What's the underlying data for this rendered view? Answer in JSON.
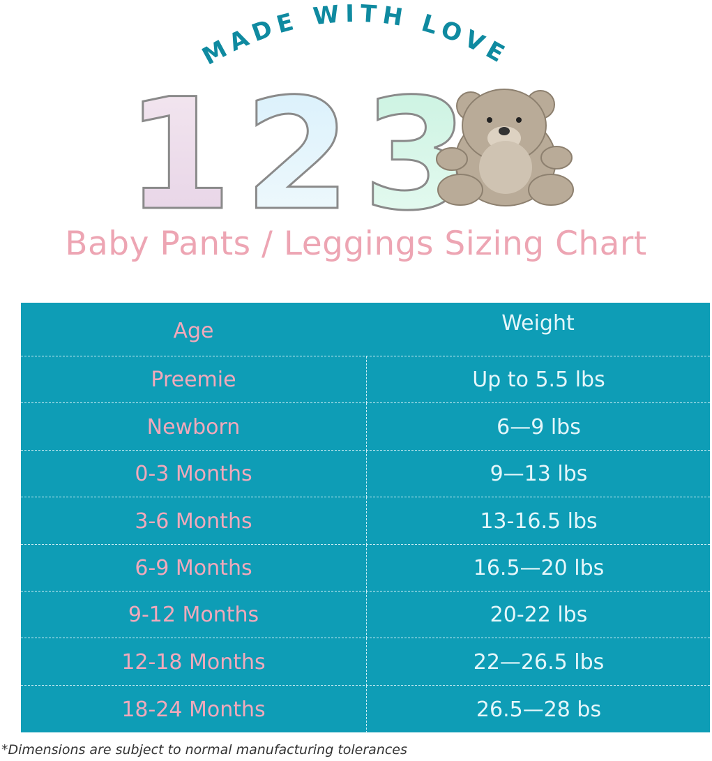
{
  "logo": {
    "tagline": "MADE WITH LOVE",
    "numerals": "123"
  },
  "title": "Baby Pants / Leggings Sizing Chart",
  "colors": {
    "table_bg": "#0e9db6",
    "age_text": "#f1a9bb",
    "weight_text": "#e4f6fa",
    "title": "#eda5b3",
    "tagline": "#0f8aa0"
  },
  "table": {
    "headers": {
      "age": "Age",
      "weight": "Weight"
    },
    "rows": [
      {
        "age": "Preemie",
        "weight": "Up to 5.5 lbs"
      },
      {
        "age": "Newborn",
        "weight": "6—9 lbs"
      },
      {
        "age": "0-3 Months",
        "weight": "9—13 lbs"
      },
      {
        "age": "3-6 Months",
        "weight": "13-16.5 lbs"
      },
      {
        "age": "6-9 Months",
        "weight": "16.5—20 lbs"
      },
      {
        "age": "9-12 Months",
        "weight": "20-22 lbs"
      },
      {
        "age": "12-18 Months",
        "weight": "22—26.5 lbs"
      },
      {
        "age": "18-24 Months",
        "weight": "26.5—28 bs"
      }
    ]
  },
  "footer": "*Dimensions are subject to normal manufacturing tolerances"
}
